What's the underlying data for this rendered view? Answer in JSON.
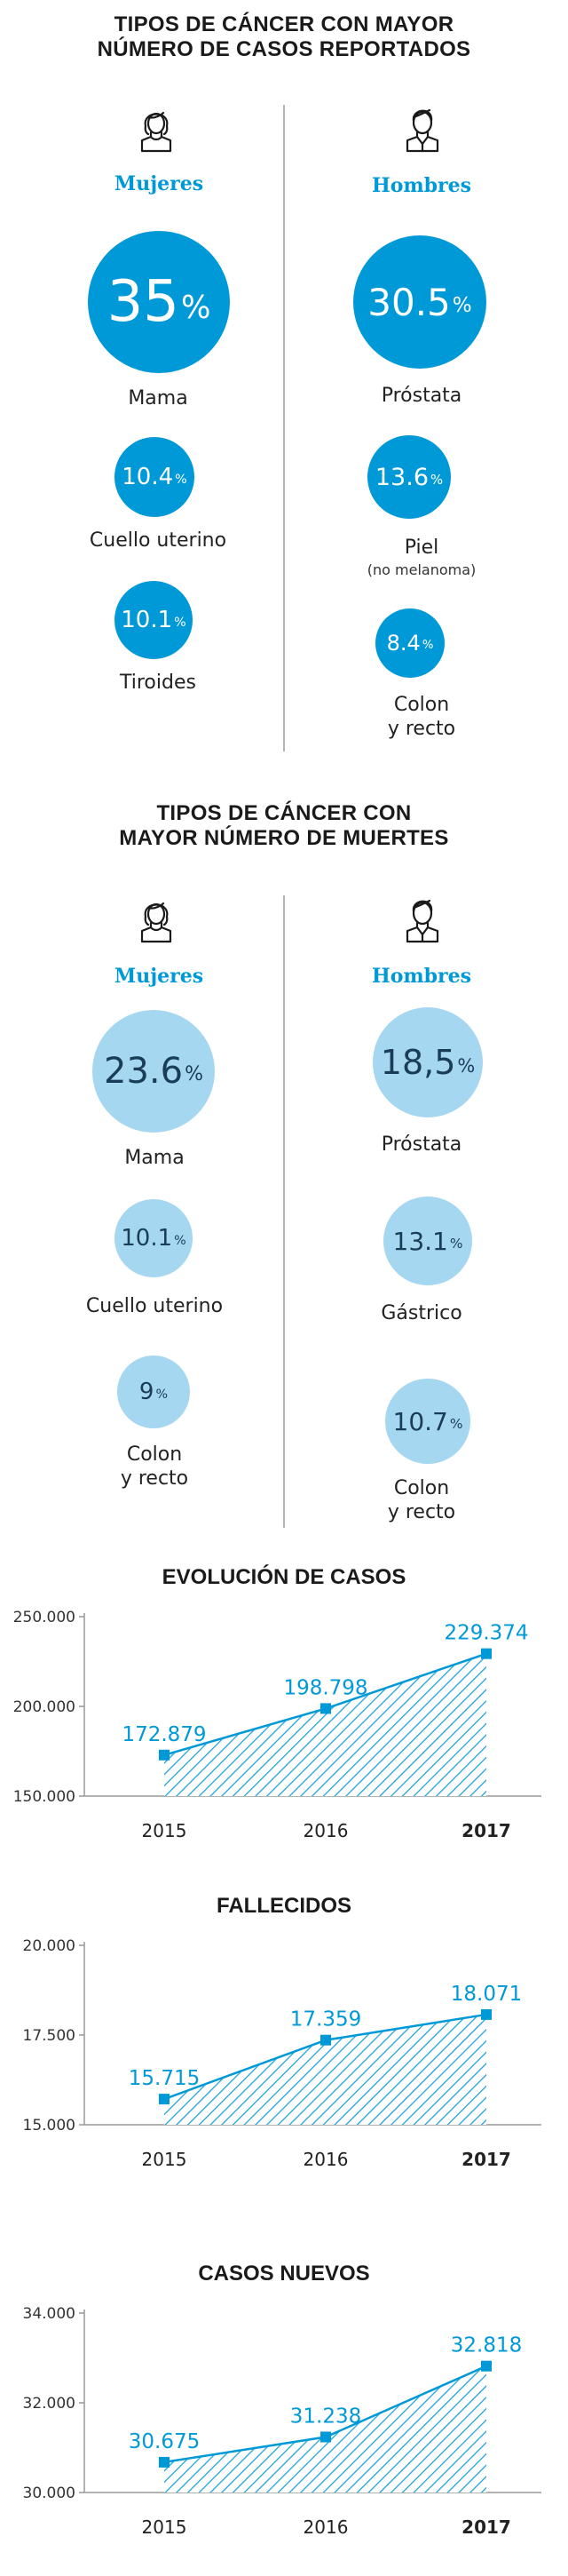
{
  "colors": {
    "accent": "#0099d8",
    "light_circle": "#a6d7f1",
    "dark_text": "#1a3d57",
    "axis": "#999999"
  },
  "section1": {
    "title_line1": "TIPOS DE CÁNCER CON MAYOR",
    "title_line2": "NÚMERO DE CASOS REPORTADOS",
    "women": {
      "icon": "woman-icon",
      "label": "Mujeres",
      "items": [
        {
          "value": "35",
          "unit": "%",
          "name": "Mama"
        },
        {
          "value": "10.4",
          "unit": "%",
          "name": "Cuello uterino"
        },
        {
          "value": "10.1",
          "unit": "%",
          "name": "Tiroides"
        }
      ]
    },
    "men": {
      "icon": "man-icon",
      "label": "Hombres",
      "items": [
        {
          "value": "30.5",
          "unit": "%",
          "name": "Próstata"
        },
        {
          "value": "13.6",
          "unit": "%",
          "name": "Piel",
          "note": "(no melanoma)"
        },
        {
          "value": "8.4",
          "unit": "%",
          "name_line1": "Colon",
          "name_line2": "y recto"
        }
      ]
    }
  },
  "section2": {
    "title_line1": "TIPOS DE CÁNCER CON",
    "title_line2": "MAYOR NÚMERO DE MUERTES",
    "women": {
      "icon": "woman-icon",
      "label": "Mujeres",
      "items": [
        {
          "value": "23.6",
          "unit": "%",
          "name": "Mama"
        },
        {
          "value": "10.1",
          "unit": "%",
          "name": "Cuello uterino"
        },
        {
          "value": "9",
          "unit": "%",
          "name_line1": "Colon",
          "name_line2": "y recto"
        }
      ]
    },
    "men": {
      "icon": "man-icon",
      "label": "Hombres",
      "items": [
        {
          "value": "18,5",
          "unit": "%",
          "name": "Próstata"
        },
        {
          "value": "13.1",
          "unit": "%",
          "name": "Gástrico"
        },
        {
          "value": "10.7",
          "unit": "%",
          "name_line1": "Colon",
          "name_line2": "y recto"
        }
      ]
    }
  },
  "chart_data": [
    {
      "type": "area",
      "title": "EVOLUCIÓN DE CASOS",
      "categories": [
        "2015",
        "2016",
        "2017"
      ],
      "values": [
        172879,
        198798,
        229374
      ],
      "value_labels": [
        "172.879",
        "198.798",
        "229.374"
      ],
      "yticks": [
        150000,
        200000,
        250000
      ],
      "ytick_labels": [
        "150.000",
        "200.000",
        "250.000"
      ],
      "ylim": [
        150000,
        250000
      ],
      "bold_category": "2017"
    },
    {
      "type": "area",
      "title": "FALLECIDOS",
      "categories": [
        "2015",
        "2016",
        "2017"
      ],
      "values": [
        15715,
        17359,
        18071
      ],
      "value_labels": [
        "15.715",
        "17.359",
        "18.071"
      ],
      "yticks": [
        15000,
        17500,
        20000
      ],
      "ytick_labels": [
        "15.000",
        "17.500",
        "20.000"
      ],
      "ylim": [
        15000,
        20000
      ],
      "bold_category": "2017"
    },
    {
      "type": "area",
      "title": "CASOS NUEVOS",
      "categories": [
        "2015",
        "2016",
        "2017"
      ],
      "values": [
        30675,
        31238,
        32818
      ],
      "value_labels": [
        "30.675",
        "31.238",
        "32.818"
      ],
      "yticks": [
        30000,
        32000,
        34000
      ],
      "ytick_labels": [
        "30.000",
        "32.000",
        "34.000"
      ],
      "ylim": [
        30000,
        34000
      ],
      "bold_category": "2017"
    }
  ]
}
